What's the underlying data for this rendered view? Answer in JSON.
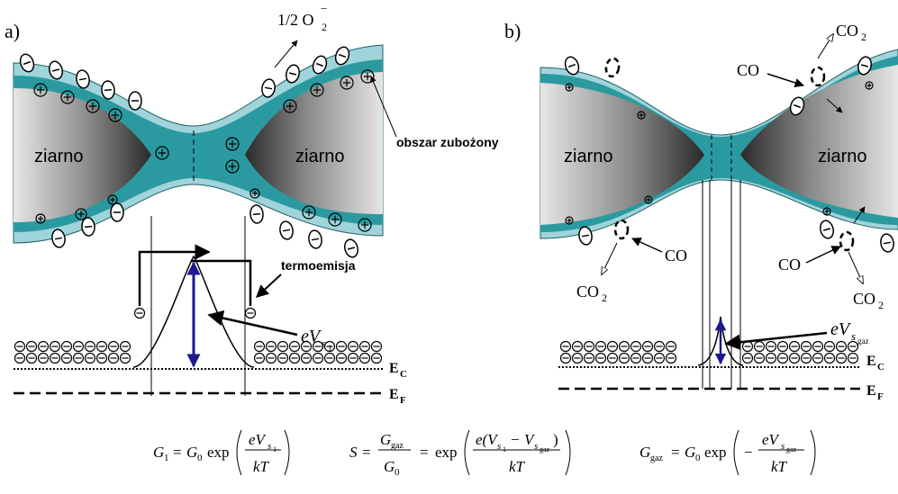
{
  "panel_a": {
    "label": "a)",
    "oxygen": {
      "text": "1/2 O",
      "sub": "2",
      "sup": "−"
    },
    "grain_left": "ziarno",
    "grain_right": "ziarno",
    "depletion": "obszar zubożony",
    "thermo": "termoemisja",
    "barrier": {
      "text": "eV",
      "sub": "s",
      "subsub": "1"
    },
    "ec": {
      "text": "E",
      "sub": "C"
    },
    "ef": {
      "text": "E",
      "sub": "F"
    }
  },
  "panel_b": {
    "label": "b)",
    "grain_left": "ziarno",
    "grain_right": "ziarno",
    "co_top": "CO",
    "co2_top": {
      "text": "CO",
      "sub": "2"
    },
    "co_left": "CO",
    "co2_left": {
      "text": "CO",
      "sub": "2"
    },
    "co_right": "CO",
    "co2_right": {
      "text": "CO",
      "sub": "2"
    },
    "barrier": {
      "text": "eV",
      "sub": "s",
      "subsub": "gaz"
    },
    "ec": {
      "text": "E",
      "sub": "C"
    },
    "ef": {
      "text": "E",
      "sub": "F"
    }
  },
  "formulas": [
    {
      "lhs": "G",
      "lhs_sub": "1",
      "eq": "=",
      "g0": "G",
      "g0_sub": "0",
      "exp": "exp",
      "num": "eV",
      "num_sub": "s",
      "num_subsub": "1",
      "den": "kT"
    },
    {
      "lhs": "S",
      "eq1": "=",
      "frac_num": "G",
      "frac_num_sub": "gaz",
      "frac_den": "G",
      "frac_den_sub": "0",
      "eq2": "=",
      "exp": "exp",
      "num_a": "e(V",
      "num_a_sub": "s",
      "num_a_subsub": "1",
      "minus": "−",
      "num_b": "V",
      "num_b_sub": "s",
      "num_b_subsub": "gaz",
      "num_close": ")",
      "den": "kT"
    },
    {
      "lhs": "G",
      "lhs_sub": "gaz",
      "eq": "=",
      "g0": "G",
      "g0_sub": "0",
      "exp": "exp",
      "sign": "−",
      "num": "eV",
      "num_sub": "s",
      "num_subsub": "gaz",
      "den": "kT"
    }
  ]
}
